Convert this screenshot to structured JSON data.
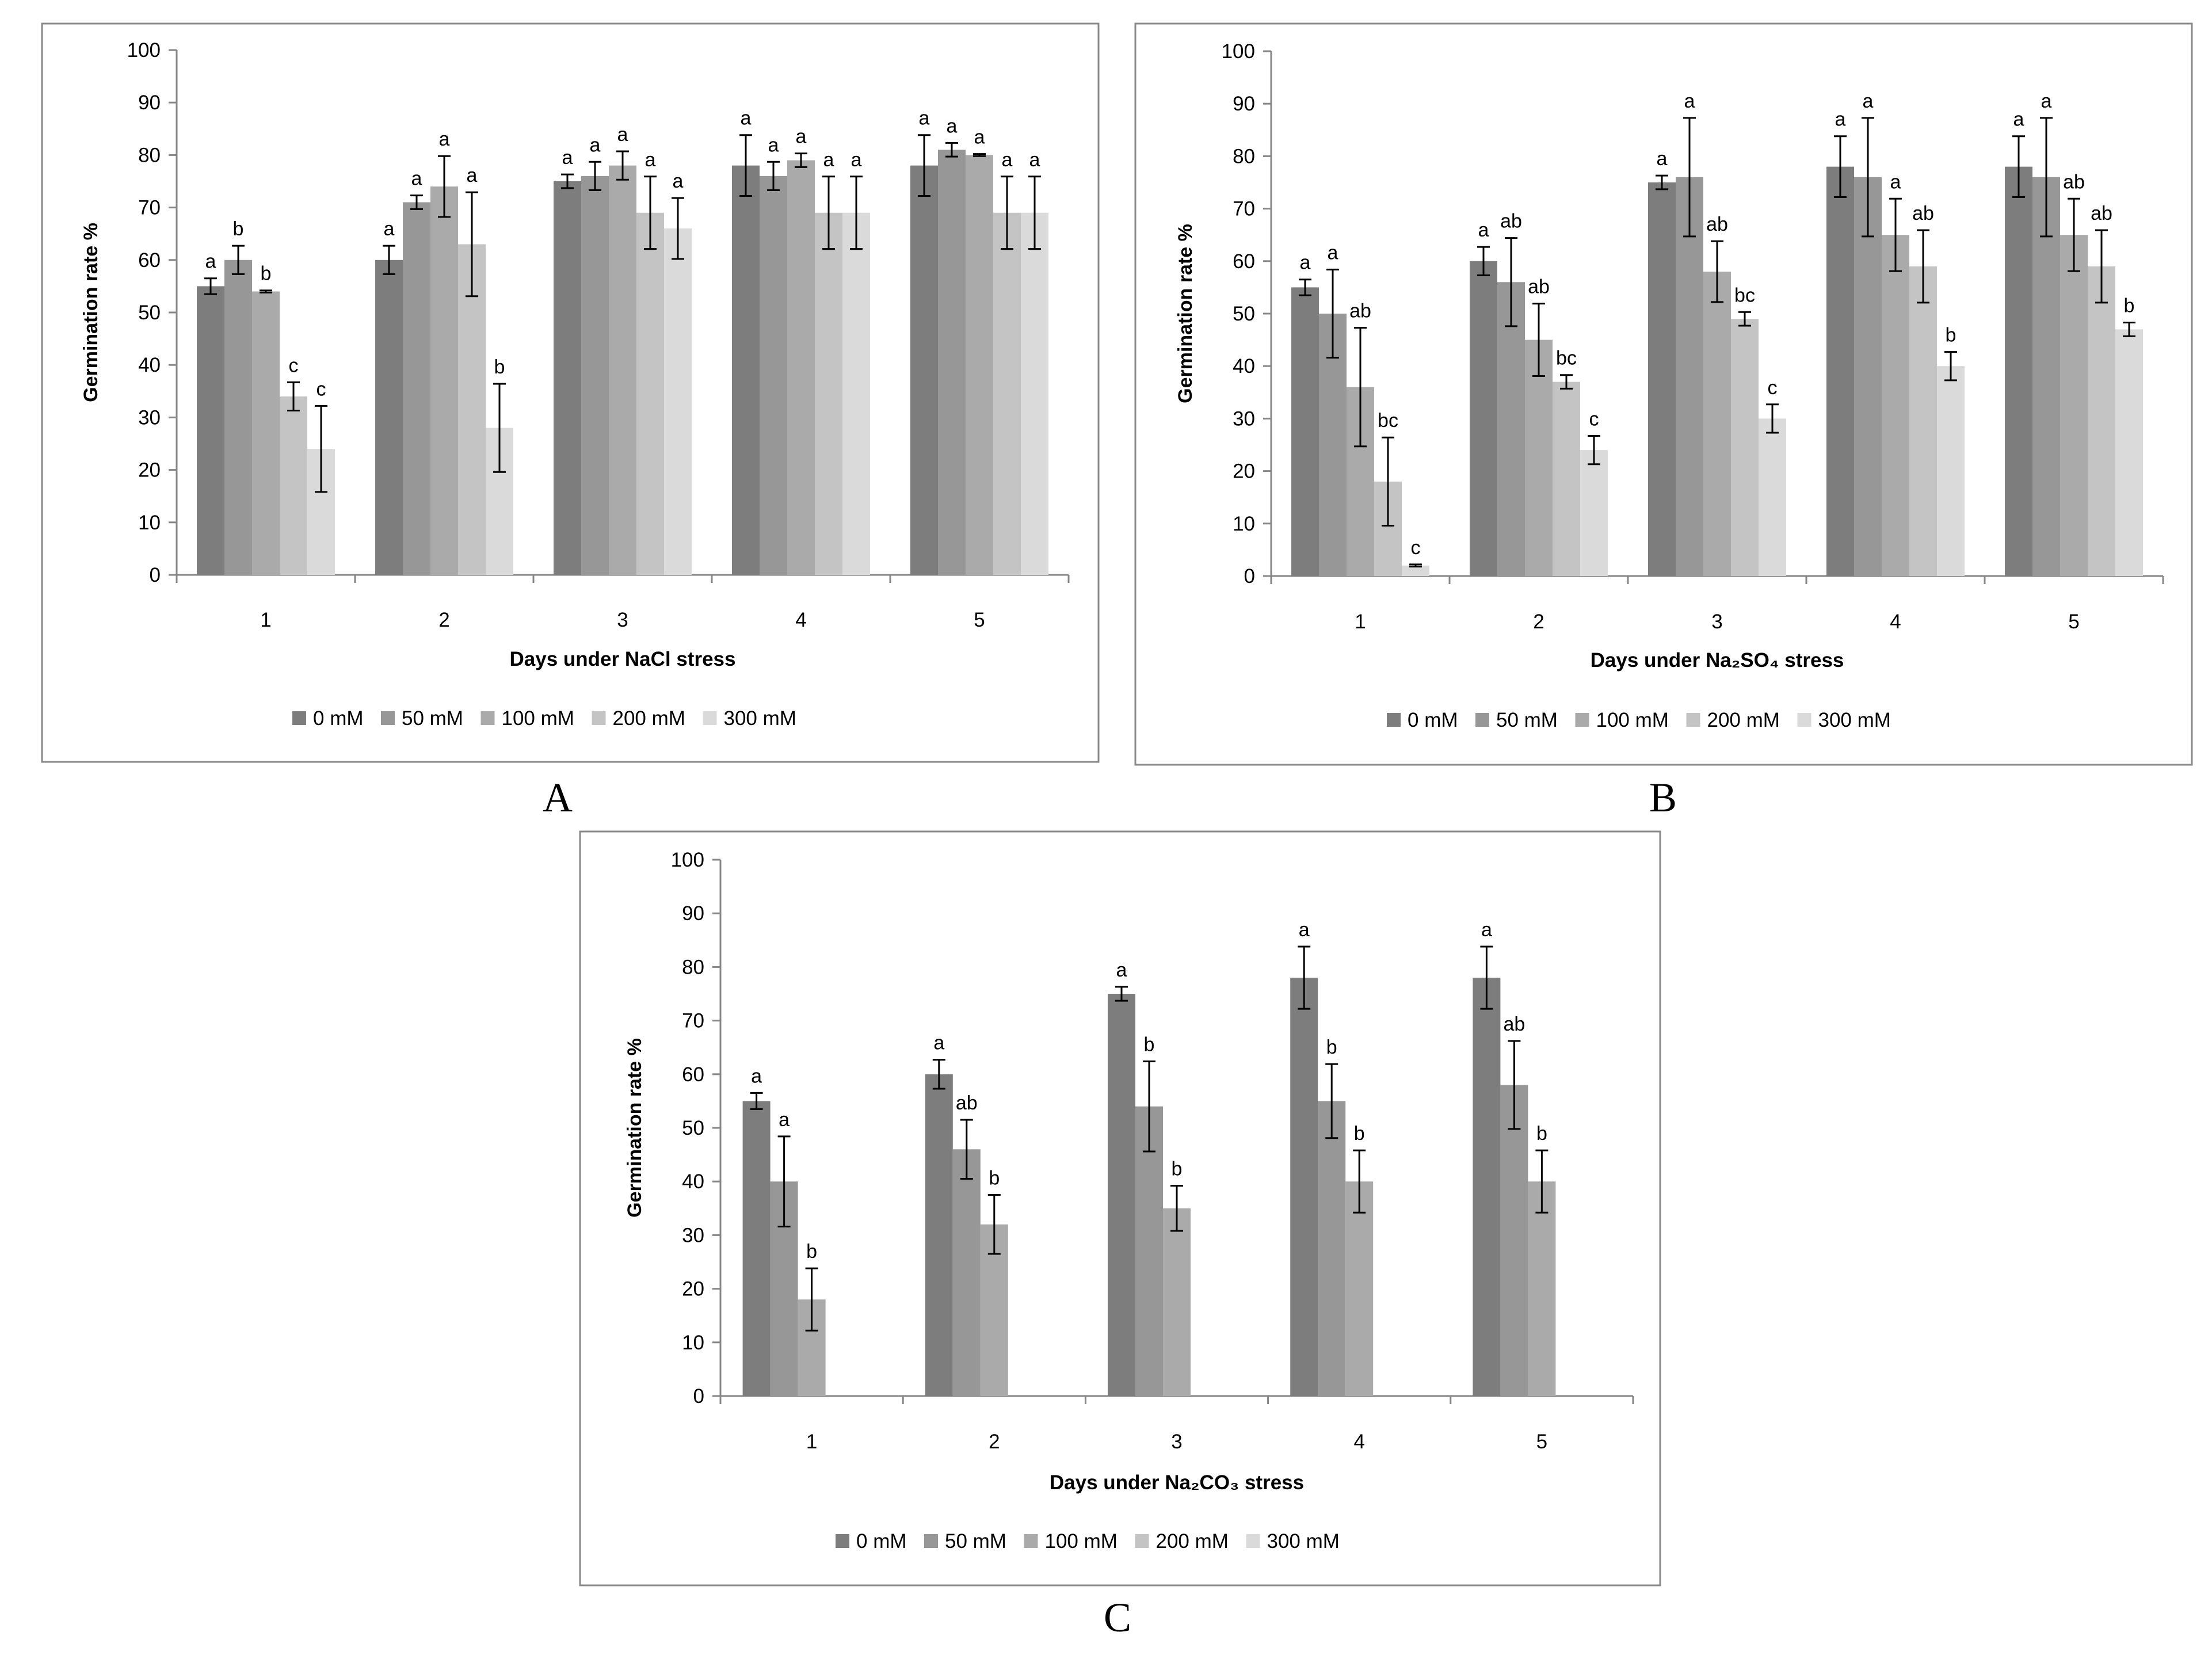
{
  "series_colors": [
    "#7d7d7d",
    "#979797",
    "#aaaaaa",
    "#c4c4c4",
    "#dadada"
  ],
  "chart_data": [
    {
      "panel": "A",
      "type": "bar",
      "ylabel": "Germination rate %",
      "xlabel": "Days under NaCl stress",
      "categories": [
        "1",
        "2",
        "3",
        "4",
        "5"
      ],
      "ylim": [
        0,
        100
      ],
      "yticks": [
        "0",
        "10",
        "20",
        "30",
        "40",
        "50",
        "60",
        "70",
        "80",
        "90",
        "100"
      ],
      "series": [
        {
          "name": "0 mM",
          "values": [
            55,
            60,
            75,
            78,
            78
          ],
          "errors": [
            1.5,
            2.7,
            1.3,
            5.8,
            5.8
          ],
          "letters": [
            "a",
            "a",
            "a",
            "a",
            "a"
          ]
        },
        {
          "name": "50 mM",
          "values": [
            60,
            71,
            76,
            76,
            81
          ],
          "errors": [
            2.7,
            1.3,
            2.7,
            2.7,
            1.3
          ],
          "letters": [
            "b",
            "a",
            "a",
            "a",
            "a"
          ]
        },
        {
          "name": "100 mM",
          "values": [
            54,
            74,
            78,
            79,
            80
          ],
          "errors": [
            0.2,
            5.8,
            2.7,
            1.3,
            0.2
          ],
          "letters": [
            "b",
            "a",
            "a",
            "a",
            "a"
          ]
        },
        {
          "name": "200 mM",
          "values": [
            34,
            63,
            69,
            69,
            69
          ],
          "errors": [
            2.7,
            9.9,
            6.9,
            6.9,
            6.9
          ],
          "letters": [
            "c",
            "a",
            "a",
            "a",
            "a"
          ]
        },
        {
          "name": "300 mM",
          "values": [
            24,
            28,
            66,
            69,
            69
          ],
          "errors": [
            8.2,
            8.4,
            5.8,
            6.9,
            6.9
          ],
          "letters": [
            "c",
            "b",
            "a",
            "a",
            "a"
          ]
        }
      ]
    },
    {
      "panel": "B",
      "type": "bar",
      "ylabel": "Germination rate %",
      "xlabel": "Days under Na₂SO₄ stress",
      "categories": [
        "1",
        "2",
        "3",
        "4",
        "5"
      ],
      "ylim": [
        0,
        100
      ],
      "yticks": [
        "0",
        "10",
        "20",
        "30",
        "40",
        "50",
        "60",
        "70",
        "80",
        "90",
        "100"
      ],
      "series": [
        {
          "name": "0 mM",
          "values": [
            55,
            60,
            75,
            78,
            78
          ],
          "errors": [
            1.5,
            2.7,
            1.3,
            5.8,
            5.8
          ],
          "letters": [
            "a",
            "a",
            "a",
            "a",
            "a"
          ]
        },
        {
          "name": "50 mM",
          "values": [
            50,
            56,
            76,
            76,
            76
          ],
          "errors": [
            8.4,
            8.4,
            11.3,
            11.3,
            11.3
          ],
          "letters": [
            "a",
            "ab",
            "a",
            "a",
            "a"
          ]
        },
        {
          "name": "100 mM",
          "values": [
            36,
            45,
            58,
            65,
            65
          ],
          "errors": [
            11.3,
            6.9,
            5.8,
            6.9,
            6.9
          ],
          "letters": [
            "ab",
            "ab",
            "ab",
            "a",
            "ab"
          ]
        },
        {
          "name": "200 mM",
          "values": [
            18,
            37,
            49,
            59,
            59
          ],
          "errors": [
            8.4,
            1.3,
            1.3,
            6.9,
            6.9
          ],
          "letters": [
            "bc",
            "bc",
            "bc",
            "ab",
            "ab"
          ]
        },
        {
          "name": "300 mM",
          "values": [
            2,
            24,
            30,
            40,
            47
          ],
          "errors": [
            0.2,
            2.7,
            2.7,
            2.7,
            1.3
          ],
          "letters": [
            "c",
            "c",
            "c",
            "b",
            "b"
          ]
        }
      ]
    },
    {
      "panel": "C",
      "type": "bar",
      "ylabel": "Germination rate %",
      "xlabel": "Days under Na₂CO₃ stress",
      "categories": [
        "1",
        "2",
        "3",
        "4",
        "5"
      ],
      "ylim": [
        0,
        100
      ],
      "yticks": [
        "0",
        "10",
        "20",
        "30",
        "40",
        "50",
        "60",
        "70",
        "80",
        "90",
        "100"
      ],
      "series": [
        {
          "name": "0 mM",
          "values": [
            55,
            60,
            75,
            78,
            78
          ],
          "errors": [
            1.5,
            2.7,
            1.3,
            5.8,
            5.8
          ],
          "letters": [
            "a",
            "a",
            "a",
            "a",
            "a"
          ]
        },
        {
          "name": "50 mM",
          "values": [
            40,
            46,
            54,
            55,
            58
          ],
          "errors": [
            8.4,
            5.5,
            8.4,
            6.9,
            8.2
          ],
          "letters": [
            "a",
            "ab",
            "b",
            "b",
            "ab"
          ]
        },
        {
          "name": "100 mM",
          "values": [
            18,
            32,
            35,
            40,
            40
          ],
          "errors": [
            5.8,
            5.5,
            4.2,
            5.8,
            5.8
          ],
          "letters": [
            "b",
            "b",
            "b",
            "b",
            "b"
          ]
        },
        {
          "name": "200 mM",
          "values": [
            null,
            null,
            null,
            null,
            null
          ],
          "errors": [
            null,
            null,
            null,
            null,
            null
          ],
          "letters": [
            "",
            "",
            "",
            "",
            ""
          ]
        },
        {
          "name": "300 mM",
          "values": [
            null,
            null,
            null,
            null,
            null
          ],
          "errors": [
            null,
            null,
            null,
            null,
            null
          ],
          "letters": [
            "",
            "",
            "",
            "",
            ""
          ]
        }
      ]
    }
  ]
}
